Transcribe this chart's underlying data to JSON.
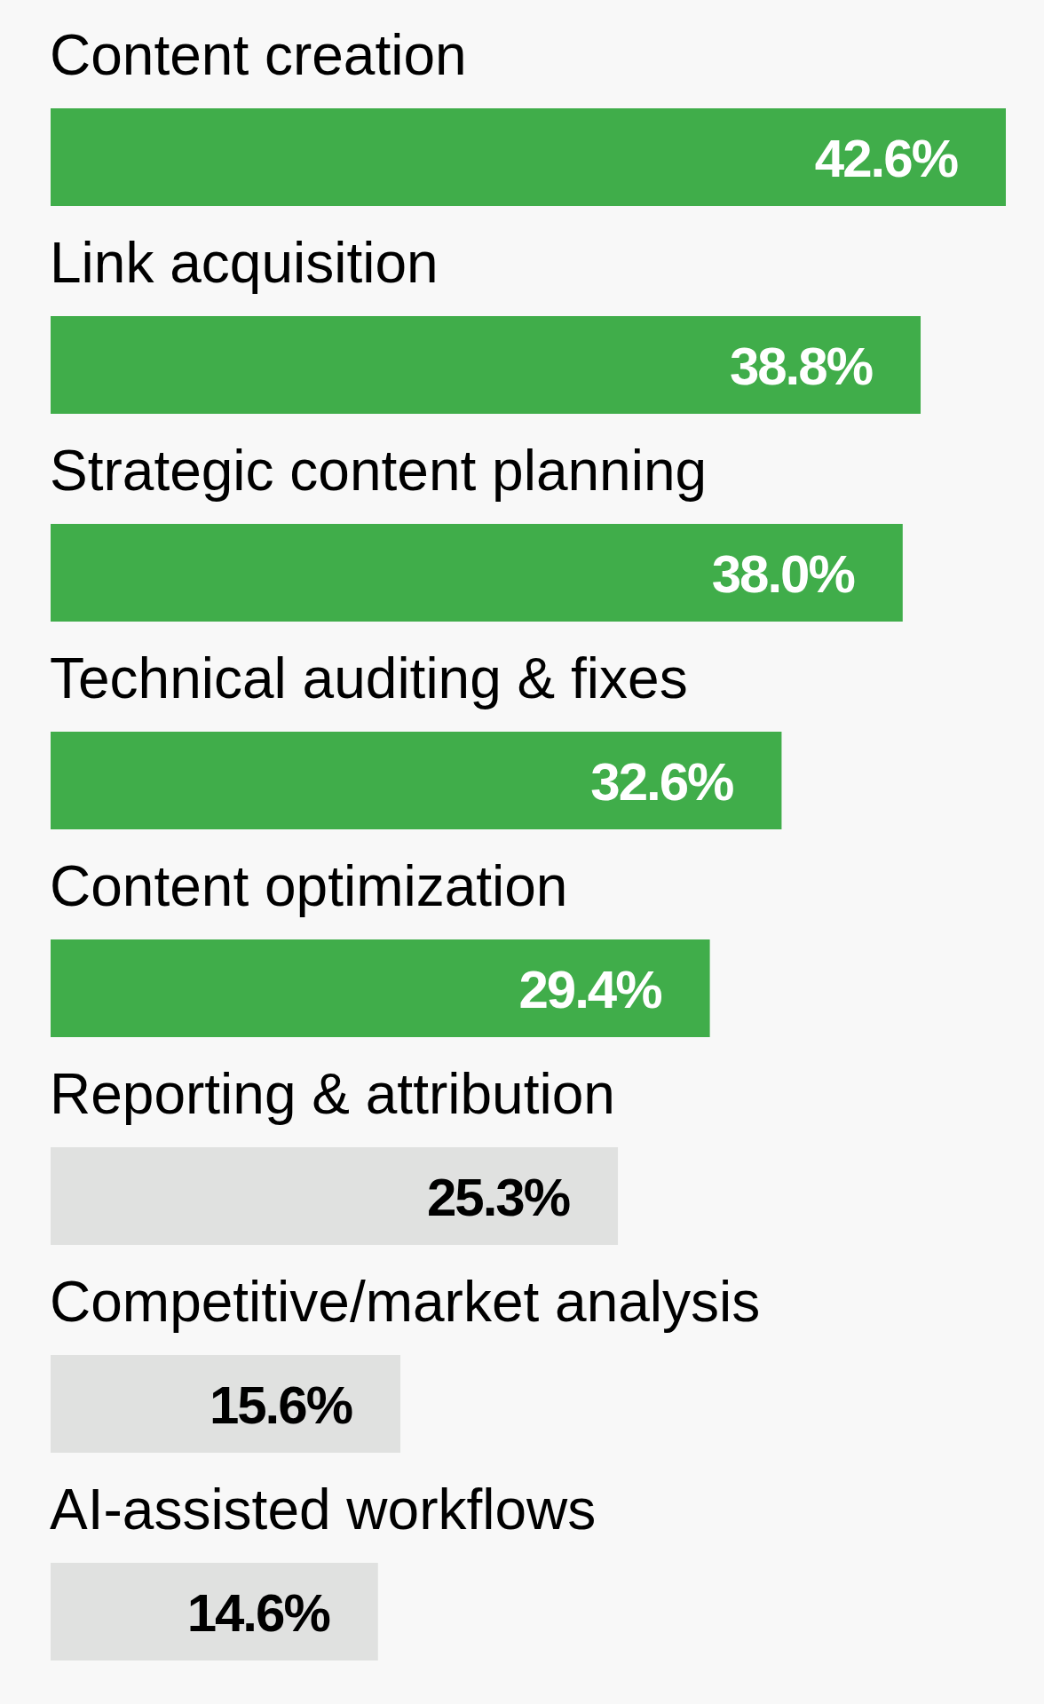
{
  "chart_data": {
    "type": "bar",
    "orientation": "horizontal",
    "categories": [
      "Content creation",
      "Link acquisition",
      "Strategic content planning",
      "Technical auditing & fixes",
      "Content optimization",
      "Reporting & attribution",
      "Competitive/market analysis",
      "AI-assisted workflows"
    ],
    "values": [
      42.6,
      38.8,
      38.0,
      32.6,
      29.4,
      25.3,
      15.6,
      14.6
    ],
    "colors": [
      "#40ad4a",
      "#40ad4a",
      "#40ad4a",
      "#40ad4a",
      "#40ad4a",
      "#e0e1e0",
      "#e0e1e0",
      "#e0e1e0"
    ],
    "value_labels": [
      "42.6%",
      "38.8%",
      "38.0%",
      "32.6%",
      "29.4%",
      "25.3%",
      "15.6%",
      "14.6%"
    ]
  }
}
